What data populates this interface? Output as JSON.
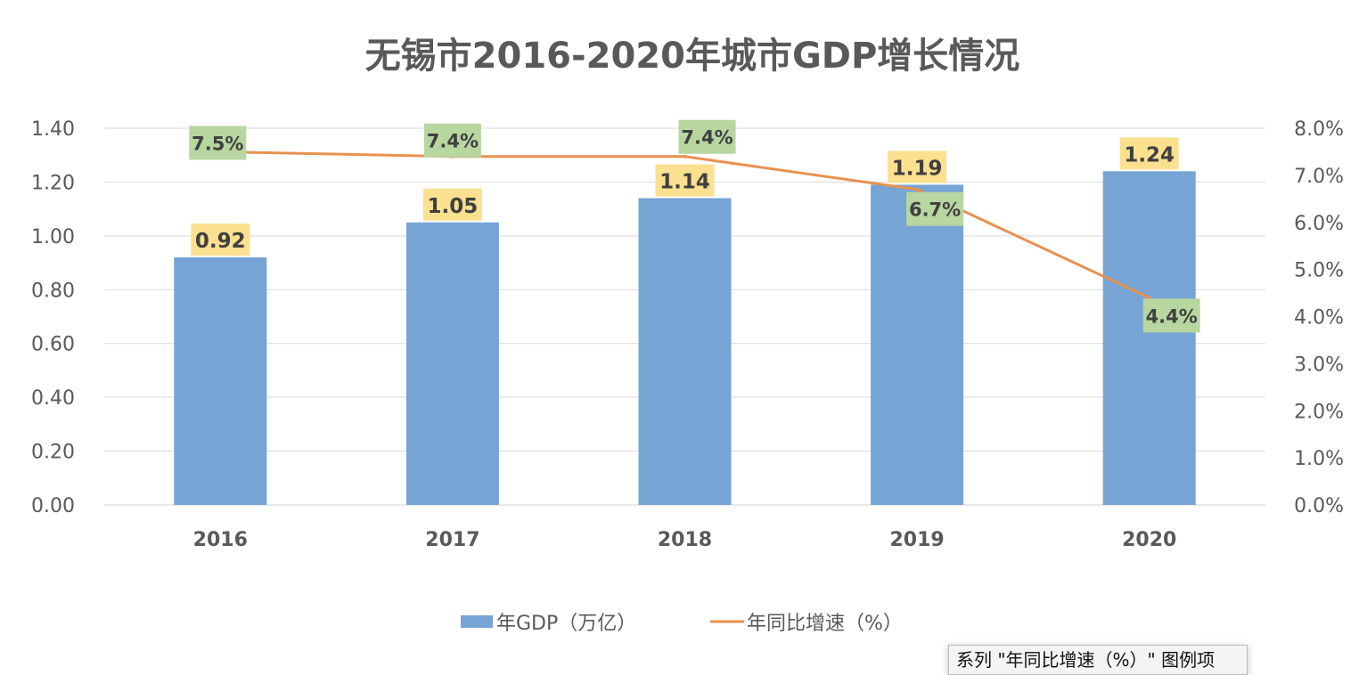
{
  "chart_data": {
    "type": "bar+line",
    "title": "无锡市2016-2020年城市GDP增长情况",
    "categories": [
      "2016",
      "2017",
      "2018",
      "2019",
      "2020"
    ],
    "series": [
      {
        "name": "年GDP（万亿）",
        "type": "bar",
        "axis": "left",
        "values": [
          0.92,
          1.05,
          1.14,
          1.19,
          1.24
        ],
        "labels": [
          "0.92",
          "1.05",
          "1.14",
          "1.19",
          "1.24"
        ],
        "color": "#75a4d5"
      },
      {
        "name": "年同比增速（%）",
        "type": "line",
        "axis": "right",
        "values": [
          7.5,
          7.4,
          7.4,
          6.7,
          4.4
        ],
        "labels": [
          "7.5%",
          "7.4%",
          "7.4%",
          "6.7%",
          "4.4%"
        ],
        "color": "#e8914f"
      }
    ],
    "left_axis": {
      "range": [
        0,
        1.4
      ],
      "ticks": [
        "0.00",
        "0.20",
        "0.40",
        "0.60",
        "0.80",
        "1.00",
        "1.20",
        "1.40"
      ]
    },
    "right_axis": {
      "range": [
        0,
        8
      ],
      "ticks": [
        "0.0%",
        "1.0%",
        "2.0%",
        "3.0%",
        "4.0%",
        "5.0%",
        "6.0%",
        "7.0%",
        "8.0%"
      ]
    },
    "grid": true,
    "legend": "bottom",
    "bar_label_bg": "#fbe08f",
    "line_label_bg": "#b7d6a0"
  },
  "tooltip": "系列 \"年同比增速（%）\" 图例项"
}
